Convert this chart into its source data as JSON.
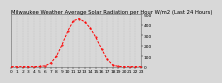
{
  "title": "Milwaukee Weather Average Solar Radiation per Hour W/m2 (Last 24 Hours)",
  "bg_color": "#d8d8d8",
  "plot_bg_color": "#d8d8d8",
  "line_color": "#ff0000",
  "x_hours": [
    0,
    1,
    2,
    3,
    4,
    5,
    6,
    7,
    8,
    9,
    10,
    11,
    12,
    13,
    14,
    15,
    16,
    17,
    18,
    19,
    20,
    21,
    22,
    23
  ],
  "solar_values": [
    0,
    0,
    0,
    0,
    0,
    2,
    8,
    35,
    100,
    210,
    340,
    440,
    460,
    430,
    370,
    280,
    170,
    70,
    15,
    2,
    0,
    0,
    0,
    0
  ],
  "ylim": [
    0,
    500
  ],
  "yticks": [
    0,
    100,
    200,
    300,
    400,
    500
  ],
  "ytick_labels": [
    "0",
    "100",
    "200",
    "300",
    "400",
    "500"
  ],
  "xlim": [
    0,
    23
  ],
  "xticks": [
    0,
    1,
    2,
    3,
    4,
    5,
    6,
    7,
    8,
    9,
    10,
    11,
    12,
    13,
    14,
    15,
    16,
    17,
    18,
    19,
    20,
    21,
    22,
    23
  ],
  "title_fontsize": 3.8,
  "tick_fontsize": 3.2,
  "line_width": 0.7,
  "marker_size": 1.0,
  "grid_color": "#bbbbbb",
  "grid_lw": 0.3
}
